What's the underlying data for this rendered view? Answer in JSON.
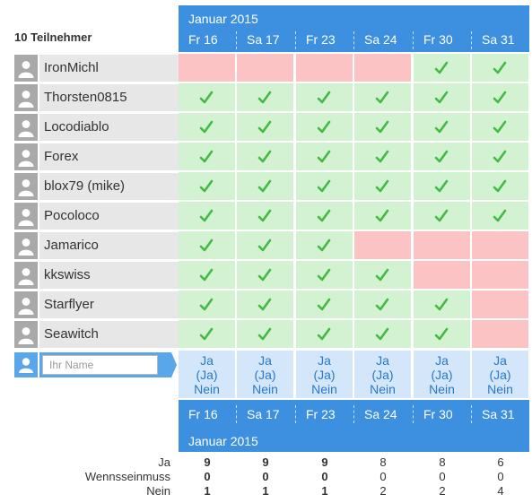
{
  "participant_count_label": "10 Teilnehmer",
  "month_label": "Januar 2015",
  "dates": [
    "Fr 16",
    "Sa 17",
    "Fr 23",
    "Sa 24",
    "Fr 30",
    "Sa 31"
  ],
  "participants": [
    {
      "name": "IronMichl",
      "votes": [
        "no",
        "no",
        "no",
        "no",
        "yes",
        "yes"
      ]
    },
    {
      "name": "Thorsten0815",
      "votes": [
        "yes",
        "yes",
        "yes",
        "yes",
        "yes",
        "yes"
      ]
    },
    {
      "name": "Locodiablo",
      "votes": [
        "yes",
        "yes",
        "yes",
        "yes",
        "yes",
        "yes"
      ]
    },
    {
      "name": "Forex",
      "votes": [
        "yes",
        "yes",
        "yes",
        "yes",
        "yes",
        "yes"
      ]
    },
    {
      "name": "blox79 (mike)",
      "votes": [
        "yes",
        "yes",
        "yes",
        "yes",
        "yes",
        "yes"
      ]
    },
    {
      "name": "Pocoloco",
      "votes": [
        "yes",
        "yes",
        "yes",
        "yes",
        "yes",
        "yes"
      ]
    },
    {
      "name": "Jamarico",
      "votes": [
        "yes",
        "yes",
        "yes",
        "no",
        "no",
        "no"
      ]
    },
    {
      "name": "kkswiss",
      "votes": [
        "yes",
        "yes",
        "yes",
        "yes",
        "no",
        "no"
      ]
    },
    {
      "name": "Starflyer",
      "votes": [
        "yes",
        "yes",
        "yes",
        "yes",
        "yes",
        "no"
      ]
    },
    {
      "name": "Seawitch",
      "votes": [
        "yes",
        "yes",
        "yes",
        "yes",
        "yes",
        "no"
      ]
    }
  ],
  "new_entry": {
    "placeholder": "Ihr Name",
    "options": [
      "Ja",
      "(Ja)",
      "Nein"
    ]
  },
  "summary": {
    "labels": [
      "Ja",
      "Wennsseinmuss",
      "Nein"
    ],
    "ja": [
      "9",
      "9",
      "9",
      "8",
      "8",
      "6"
    ],
    "wenn": [
      "0",
      "0",
      "0",
      "0",
      "0",
      "0"
    ],
    "nein": [
      "1",
      "1",
      "1",
      "2",
      "2",
      "4"
    ],
    "bold_columns": [
      true,
      true,
      true,
      false,
      false,
      false
    ]
  },
  "colors": {
    "header_blue": "#3d8fe0",
    "yes_green": "#d2f2d2",
    "no_red": "#fbc3c3",
    "check_green": "#44b944",
    "option_bg": "#d3e6fa",
    "option_text": "#2a78c8"
  },
  "icons": {
    "avatar": "person-icon",
    "vote_yes": "checkmark-icon"
  }
}
